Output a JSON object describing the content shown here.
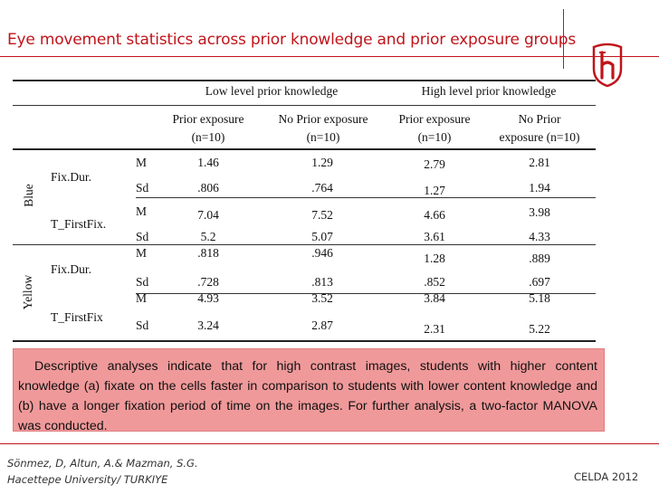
{
  "title": "Eye movement statistics across prior knowledge and prior exposure groups",
  "table": {
    "group_headers": [
      "Low level prior knowledge",
      "High level prior knowledge"
    ],
    "col_headers": [
      [
        "Prior exposure",
        "(n=10)"
      ],
      [
        "No Prior exposure",
        "(n=10)"
      ],
      [
        "Prior exposure",
        "(n=10)"
      ],
      [
        "No Prior",
        "exposure (n=10)"
      ]
    ],
    "sections": [
      {
        "label": "Blue",
        "measures": [
          {
            "name": "Fix.Dur.",
            "rows": [
              {
                "stat": "M",
                "values": [
                  "1.46",
                  "1.29",
                  "2.79",
                  "2.81"
                ]
              },
              {
                "stat": "Sd",
                "values": [
                  ".806",
                  ".764",
                  "1.27",
                  "1.94"
                ]
              }
            ]
          },
          {
            "name": "T_FirstFix.",
            "rows": [
              {
                "stat": "M",
                "values": [
                  "7.04",
                  "7.52",
                  "4.66",
                  "3.98"
                ]
              },
              {
                "stat": "Sd",
                "values": [
                  "5.2",
                  "5.07",
                  "3.61",
                  "4.33"
                ]
              }
            ]
          }
        ]
      },
      {
        "label": "Yellow",
        "measures": [
          {
            "name": "Fix.Dur.",
            "rows": [
              {
                "stat": "M",
                "values": [
                  ".818",
                  ".946",
                  "1.28",
                  ".889"
                ]
              },
              {
                "stat": "Sd",
                "values": [
                  ".728",
                  ".813",
                  ".852",
                  ".697"
                ]
              }
            ]
          },
          {
            "name": "T_FirstFix",
            "rows": [
              {
                "stat": "M",
                "values": [
                  "4.93",
                  "3.52",
                  "3.84",
                  "5.18"
                ]
              },
              {
                "stat": "Sd",
                "values": [
                  "3.24",
                  "2.87",
                  "2.31",
                  "5.22"
                ]
              }
            ]
          }
        ]
      }
    ]
  },
  "note": "Descriptive analyses indicate that for high contrast images, students with higher content knowledge (a) fixate on the cells faster in comparison to students with lower content knowledge and (b) have a longer fixation period of time on the images. For further analysis, a two-factor MANOVA was conducted.",
  "footer": {
    "authors": "Sönmez, D, Altun, A.& Mazman, S.G.",
    "affiliation": "Hacettepe University/ TURKIYE",
    "conference": "CELDA 2012"
  },
  "colors": {
    "accent": "#c0141b",
    "note_bg": "#f0999a"
  }
}
